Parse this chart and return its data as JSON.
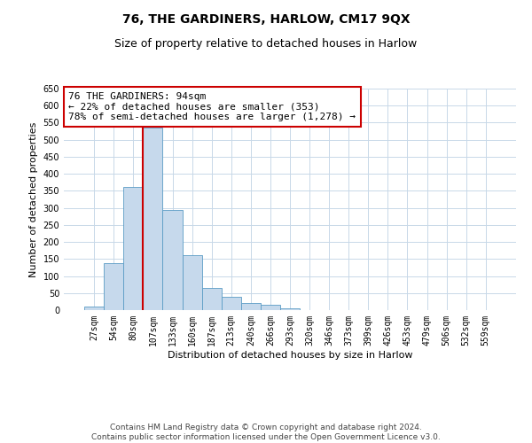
{
  "title": "76, THE GARDINERS, HARLOW, CM17 9QX",
  "subtitle": "Size of property relative to detached houses in Harlow",
  "xlabel": "Distribution of detached houses by size in Harlow",
  "ylabel": "Number of detached properties",
  "bin_labels": [
    "27sqm",
    "54sqm",
    "80sqm",
    "107sqm",
    "133sqm",
    "160sqm",
    "187sqm",
    "213sqm",
    "240sqm",
    "266sqm",
    "293sqm",
    "320sqm",
    "346sqm",
    "373sqm",
    "399sqm",
    "426sqm",
    "453sqm",
    "479sqm",
    "506sqm",
    "532sqm",
    "559sqm"
  ],
  "bin_values": [
    10,
    137,
    362,
    536,
    293,
    160,
    65,
    40,
    22,
    15,
    5,
    0,
    0,
    0,
    0,
    1,
    0,
    0,
    0,
    1,
    0
  ],
  "bar_color": "#c6d9ec",
  "bar_edge_color": "#5a9cc5",
  "vline_x_index": 3,
  "vline_color": "#cc0000",
  "annotation_text": "76 THE GARDINERS: 94sqm\n← 22% of detached houses are smaller (353)\n78% of semi-detached houses are larger (1,278) →",
  "annotation_box_edge_color": "#cc0000",
  "ylim": [
    0,
    650
  ],
  "yticks": [
    0,
    50,
    100,
    150,
    200,
    250,
    300,
    350,
    400,
    450,
    500,
    550,
    600,
    650
  ],
  "footer_line1": "Contains HM Land Registry data © Crown copyright and database right 2024.",
  "footer_line2": "Contains public sector information licensed under the Open Government Licence v3.0.",
  "bg_color": "#ffffff",
  "grid_color": "#c8d8e8",
  "title_fontsize": 10,
  "subtitle_fontsize": 9,
  "axis_label_fontsize": 8,
  "tick_fontsize": 7,
  "annotation_fontsize": 8,
  "footer_fontsize": 6.5
}
